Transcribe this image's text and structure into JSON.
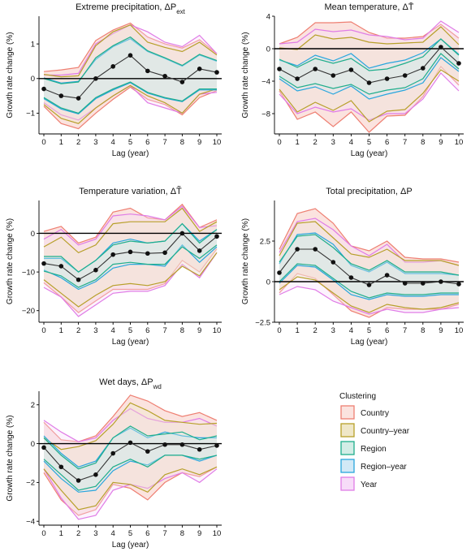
{
  "x_axis_label": "Lag (year)",
  "y_axis_label": "Growth rate change (%)",
  "legend": {
    "title": "Clustering",
    "placement": "bottom-right",
    "entries": [
      {
        "name": "Country",
        "edge": "#ee7f72",
        "fill": "#fbe3df"
      },
      {
        "name": "Country–year",
        "edge": "#b7a02a",
        "fill": "#efe7c8"
      },
      {
        "name": "Region",
        "edge": "#1fae8c",
        "fill": "#d3ede6"
      },
      {
        "name": "Region–year",
        "edge": "#29a6dd",
        "fill": "#d2e9f6"
      },
      {
        "name": "Year",
        "edge": "#e07ce6",
        "fill": "#f7dcf8"
      }
    ]
  },
  "chart_data": [
    {
      "type": "line",
      "title": "Extreme precipitation, ΔP",
      "title_sub": "ext",
      "x": [
        0,
        1,
        2,
        3,
        4,
        5,
        6,
        7,
        8,
        9,
        10
      ],
      "ylim": [
        -1.6,
        1.8
      ],
      "yticks": [
        -1,
        0,
        1
      ],
      "estimate": [
        -0.3,
        -0.5,
        -0.57,
        0.0,
        0.35,
        0.67,
        0.22,
        0.07,
        -0.1,
        0.28,
        0.18
      ],
      "bands": [
        {
          "name": "Country",
          "lower": [
            -0.8,
            -1.3,
            -1.45,
            -1.0,
            -0.6,
            -0.25,
            -0.6,
            -0.75,
            -1.05,
            -0.55,
            -0.35
          ],
          "upper": [
            0.2,
            0.25,
            0.32,
            1.1,
            1.4,
            1.6,
            1.2,
            1.0,
            0.88,
            1.12,
            0.72
          ]
        },
        {
          "name": "Country–year",
          "lower": [
            -0.75,
            -1.15,
            -1.3,
            -0.85,
            -0.5,
            -0.2,
            -0.5,
            -0.7,
            -1.0,
            -0.45,
            -0.3
          ],
          "upper": [
            0.12,
            0.05,
            0.08,
            0.95,
            1.35,
            1.55,
            1.05,
            0.9,
            0.78,
            1.05,
            0.68
          ]
        },
        {
          "name": "Region",
          "lower": [
            -0.55,
            -0.85,
            -1.0,
            -0.55,
            -0.3,
            -0.1,
            -0.4,
            -0.55,
            -0.65,
            -0.3,
            -0.3
          ],
          "upper": [
            0.0,
            -0.15,
            -0.1,
            0.6,
            0.95,
            1.2,
            0.8,
            0.6,
            0.38,
            0.7,
            0.52
          ]
        },
        {
          "name": "Region–year",
          "lower": [
            -0.58,
            -0.88,
            -1.02,
            -0.58,
            -0.33,
            -0.12,
            -0.42,
            -0.57,
            -0.67,
            -0.33,
            -0.33
          ],
          "upper": [
            0.02,
            -0.13,
            -0.08,
            0.55,
            0.92,
            1.15,
            0.78,
            0.58,
            0.36,
            0.68,
            0.5
          ]
        },
        {
          "name": "Year",
          "lower": [
            -0.7,
            -1.05,
            -1.2,
            -0.85,
            -0.5,
            -0.2,
            -0.7,
            -0.85,
            -1.0,
            -0.45,
            -0.4
          ],
          "upper": [
            0.1,
            0.1,
            0.15,
            1.0,
            1.3,
            1.55,
            1.35,
            1.05,
            0.92,
            1.25,
            0.72
          ]
        }
      ]
    },
    {
      "type": "line",
      "title": "Mean temperature, ΔT̄",
      "title_sub": "",
      "x": [
        0,
        1,
        2,
        3,
        4,
        5,
        6,
        7,
        8,
        9,
        10
      ],
      "ylim": [
        -10.5,
        4
      ],
      "yticks": [
        -8,
        -4,
        0,
        4
      ],
      "estimate": [
        -2.5,
        -3.7,
        -2.5,
        -3.3,
        -2.6,
        -4.2,
        -3.7,
        -3.3,
        -2.4,
        0.2,
        -1.8
      ],
      "bands": [
        {
          "name": "Country",
          "lower": [
            -5.2,
            -8.7,
            -7.8,
            -9.6,
            -7.8,
            -10.3,
            -8.3,
            -8.2,
            -5.9,
            -2.2,
            -4.5
          ],
          "upper": [
            0.6,
            1.4,
            3.2,
            3.2,
            3.3,
            2.0,
            1.3,
            1.3,
            1.5,
            3.0,
            1.3
          ]
        },
        {
          "name": "Country–year",
          "lower": [
            -5.0,
            -7.8,
            -6.6,
            -7.6,
            -6.4,
            -9.0,
            -7.7,
            -7.5,
            -5.5,
            -2.6,
            -4.0
          ],
          "upper": [
            0.1,
            -0.1,
            1.7,
            1.2,
            1.4,
            0.8,
            0.6,
            0.7,
            0.8,
            2.7,
            0.5
          ]
        },
        {
          "name": "Region",
          "lower": [
            -3.4,
            -4.8,
            -4.3,
            -4.9,
            -4.4,
            -5.6,
            -5.1,
            -4.8,
            -3.7,
            -0.6,
            -2.5
          ],
          "upper": [
            -1.3,
            -2.3,
            -1.2,
            -1.8,
            -1.2,
            -2.7,
            -2.5,
            -1.8,
            -1.0,
            1.2,
            -0.8
          ]
        },
        {
          "name": "Region–year",
          "lower": [
            -3.7,
            -5.2,
            -4.7,
            -5.6,
            -4.6,
            -6.2,
            -5.6,
            -5.1,
            -4.2,
            -1.1,
            -2.8
          ],
          "upper": [
            -1.4,
            -2.1,
            -0.8,
            -1.5,
            -0.6,
            -2.4,
            -1.8,
            -1.4,
            -0.5,
            1.2,
            -0.7
          ]
        },
        {
          "name": "Year",
          "lower": [
            -5.6,
            -8.0,
            -7.2,
            -7.8,
            -7.4,
            -8.8,
            -8.0,
            -8.0,
            -6.2,
            -3.0,
            -5.2
          ],
          "upper": [
            0.6,
            0.8,
            2.4,
            2.1,
            2.3,
            1.7,
            1.5,
            1.1,
            1.3,
            3.4,
            2.0
          ]
        }
      ]
    },
    {
      "type": "line",
      "title": "Temperature variation, ΔT̃",
      "title_sub": "",
      "x": [
        0,
        1,
        2,
        3,
        4,
        5,
        6,
        7,
        8,
        9,
        10
      ],
      "ylim": [
        -23,
        8.5
      ],
      "yticks": [
        -20,
        -10,
        0
      ],
      "estimate": [
        -7.8,
        -8.5,
        -12.0,
        -9.5,
        -5.5,
        -4.8,
        -5.2,
        -5.0,
        0.0,
        -4.5,
        -0.8
      ],
      "bands": [
        {
          "name": "Country",
          "lower": [
            -12.8,
            -16.5,
            -20.5,
            -17.5,
            -14.5,
            -14.5,
            -14.5,
            -13.0,
            -7.0,
            -10.0,
            -4.0
          ],
          "upper": [
            0.5,
            1.8,
            -2.5,
            -1.0,
            5.5,
            6.5,
            4.0,
            3.5,
            7.5,
            1.5,
            3.5
          ]
        },
        {
          "name": "Country–year",
          "lower": [
            -12.0,
            -15.5,
            -19.0,
            -16.0,
            -13.5,
            -13.0,
            -13.5,
            -12.5,
            -8.5,
            -11.0,
            -5.0
          ],
          "upper": [
            -3.5,
            -1.0,
            -5.0,
            -3.0,
            2.5,
            3.0,
            3.0,
            3.0,
            6.5,
            0.5,
            3.0
          ]
        },
        {
          "name": "Region",
          "lower": [
            -9.8,
            -11.0,
            -14.0,
            -12.0,
            -8.0,
            -7.5,
            -8.0,
            -8.0,
            -3.5,
            -6.5,
            -3.0
          ],
          "upper": [
            -6.0,
            -6.0,
            -10.0,
            -7.0,
            -3.0,
            -2.0,
            -2.5,
            -2.0,
            2.5,
            -2.5,
            1.0
          ]
        },
        {
          "name": "Region–year",
          "lower": [
            -9.5,
            -11.5,
            -14.5,
            -12.5,
            -9.0,
            -8.0,
            -8.0,
            -8.5,
            -3.0,
            -7.5,
            -3.5
          ],
          "upper": [
            -6.5,
            -6.5,
            -10.0,
            -7.0,
            -2.5,
            -1.5,
            -2.5,
            -2.0,
            2.5,
            -2.0,
            1.0
          ]
        },
        {
          "name": "Year",
          "lower": [
            -14.0,
            -16.5,
            -21.5,
            -18.5,
            -15.5,
            -15.0,
            -15.0,
            -13.5,
            -8.0,
            -11.5,
            -5.0
          ],
          "upper": [
            -1.5,
            1.0,
            -3.0,
            -1.5,
            4.5,
            5.0,
            4.5,
            3.5,
            7.0,
            1.5,
            2.0
          ]
        }
      ]
    },
    {
      "type": "line",
      "title": "Total precipitation, ΔP",
      "title_sub": "",
      "x": [
        0,
        1,
        2,
        3,
        4,
        5,
        6,
        7,
        8,
        9,
        10
      ],
      "ylim": [
        -2.5,
        5.0
      ],
      "yticks": [
        -2.5,
        0,
        2.5
      ],
      "estimate": [
        0.55,
        2.0,
        2.0,
        1.2,
        0.25,
        -0.2,
        0.4,
        -0.1,
        -0.1,
        0.0,
        -0.15
      ],
      "bands": [
        {
          "name": "Country",
          "lower": [
            -0.7,
            0.5,
            0.2,
            -0.8,
            -1.8,
            -2.2,
            -1.6,
            -1.7,
            -1.7,
            -1.7,
            -1.4
          ],
          "upper": [
            2.0,
            4.2,
            4.5,
            3.6,
            2.2,
            1.9,
            2.5,
            1.5,
            1.4,
            1.4,
            1.2
          ]
        },
        {
          "name": "Country–year",
          "lower": [
            -0.5,
            0.3,
            0.1,
            -0.7,
            -1.5,
            -1.9,
            -1.4,
            -1.6,
            -1.7,
            -1.6,
            -1.3
          ],
          "upper": [
            1.6,
            3.6,
            3.7,
            2.7,
            1.7,
            1.5,
            2.0,
            1.3,
            1.3,
            1.3,
            1.0
          ]
        },
        {
          "name": "Region",
          "lower": [
            0.0,
            1.1,
            1.0,
            0.2,
            -0.6,
            -1.0,
            -0.7,
            -0.8,
            -0.8,
            -0.7,
            -0.7
          ],
          "upper": [
            1.2,
            2.8,
            2.9,
            2.1,
            1.1,
            0.7,
            1.3,
            0.6,
            0.6,
            0.6,
            0.4
          ]
        },
        {
          "name": "Region–year",
          "lower": [
            -0.1,
            1.0,
            0.9,
            0.1,
            -0.8,
            -1.1,
            -0.8,
            -0.9,
            -0.9,
            -0.8,
            -0.8
          ],
          "upper": [
            1.1,
            2.9,
            3.0,
            2.3,
            1.0,
            0.6,
            1.2,
            0.5,
            0.5,
            0.5,
            0.4
          ]
        },
        {
          "name": "Year",
          "lower": [
            -0.8,
            -0.3,
            -0.5,
            -1.2,
            -1.6,
            -2.0,
            -1.7,
            -1.9,
            -1.9,
            -1.7,
            -1.6
          ],
          "upper": [
            1.8,
            3.7,
            3.9,
            3.2,
            2.2,
            1.6,
            2.3,
            1.2,
            1.2,
            1.3,
            1.0
          ]
        }
      ]
    },
    {
      "type": "line",
      "title": "Wet days, ΔP",
      "title_sub": "wd",
      "x": [
        0,
        1,
        2,
        3,
        4,
        5,
        6,
        7,
        8,
        9,
        10
      ],
      "ylim": [
        -4.2,
        2.7
      ],
      "yticks": [
        -4,
        -2,
        0,
        2
      ],
      "estimate": [
        -0.2,
        -1.2,
        -1.9,
        -1.6,
        -0.5,
        0.05,
        -0.4,
        -0.05,
        -0.05,
        -0.3,
        -0.1
      ],
      "bands": [
        {
          "name": "Country",
          "lower": [
            -1.5,
            -2.9,
            -3.7,
            -3.4,
            -2.1,
            -2.3,
            -2.9,
            -2.0,
            -1.5,
            -1.7,
            -1.2
          ],
          "upper": [
            1.1,
            0.2,
            0.1,
            0.4,
            1.4,
            2.5,
            2.2,
            1.7,
            1.4,
            1.6,
            1.2
          ]
        },
        {
          "name": "Country–year",
          "lower": [
            -1.3,
            -2.4,
            -3.4,
            -3.2,
            -2.0,
            -2.1,
            -2.5,
            -1.6,
            -1.3,
            -1.6,
            -1.2
          ],
          "upper": [
            0.3,
            -0.3,
            -0.15,
            0.15,
            1.0,
            2.1,
            1.7,
            1.2,
            1.1,
            1.0,
            1.05
          ]
        },
        {
          "name": "Region",
          "lower": [
            -0.8,
            -1.6,
            -2.4,
            -2.2,
            -1.2,
            -0.8,
            -1.2,
            -0.6,
            -0.6,
            -0.8,
            -0.6
          ],
          "upper": [
            0.3,
            -0.6,
            -1.3,
            -1.0,
            0.3,
            0.9,
            0.4,
            0.5,
            0.6,
            0.2,
            0.4
          ]
        },
        {
          "name": "Region–year",
          "lower": [
            -0.9,
            -1.8,
            -2.5,
            -2.4,
            -1.4,
            -0.9,
            -1.1,
            -0.6,
            -0.6,
            -0.9,
            -0.6
          ],
          "upper": [
            0.4,
            -0.5,
            -1.2,
            -0.9,
            0.3,
            0.8,
            0.3,
            0.6,
            0.4,
            0.3,
            0.3
          ]
        },
        {
          "name": "Year",
          "lower": [
            -1.3,
            -2.8,
            -3.9,
            -3.7,
            -2.4,
            -2.1,
            -2.3,
            -1.8,
            -1.5,
            -2.0,
            -1.3
          ],
          "upper": [
            1.2,
            0.6,
            0.1,
            0.3,
            1.2,
            1.8,
            1.3,
            1.1,
            1.1,
            1.3,
            0.9
          ]
        }
      ]
    }
  ]
}
